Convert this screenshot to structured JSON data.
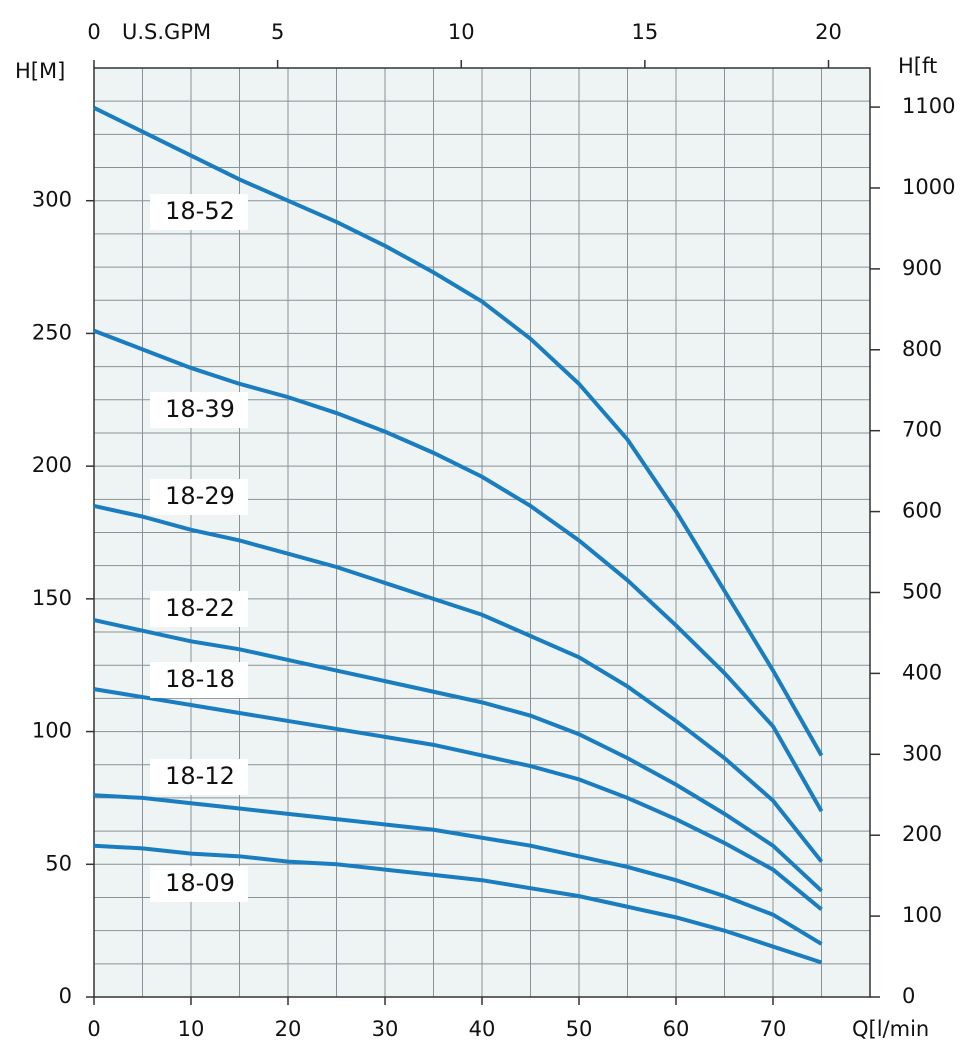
{
  "chart_data": {
    "type": "line",
    "y_label": "H[M]",
    "y2_label": "H[ft",
    "x_label": "Q[l/min",
    "x2_label": "U.S.GPM",
    "x": [
      0,
      5,
      10,
      15,
      20,
      25,
      30,
      35,
      40,
      45,
      50,
      55,
      60,
      65,
      70,
      75
    ],
    "xlim": [
      0,
      80
    ],
    "xticks": [
      0,
      10,
      20,
      30,
      40,
      50,
      60,
      70
    ],
    "x2lim": [
      0,
      21.13
    ],
    "x2ticks": [
      0,
      5,
      10,
      15,
      20
    ],
    "ylim": [
      0,
      350
    ],
    "yticks": [
      0,
      50,
      100,
      150,
      200,
      250,
      300
    ],
    "y2lim": [
      0,
      1148.3
    ],
    "y2ticks": [
      0,
      100,
      200,
      300,
      400,
      500,
      600,
      700,
      800,
      900,
      1000,
      1100
    ],
    "grid": true,
    "background": "#eef4f4",
    "series": [
      {
        "name": "18-52",
        "color": "#1a7dc0",
        "values": [
          335,
          326,
          317,
          308,
          300,
          292,
          283,
          273,
          262,
          248,
          231,
          210,
          183,
          153,
          123,
          91
        ]
      },
      {
        "name": "18-39",
        "color": "#1a7dc0",
        "values": [
          251,
          244,
          237,
          231,
          226,
          220,
          213,
          205,
          196,
          185,
          172,
          157,
          140,
          122,
          102,
          70
        ]
      },
      {
        "name": "18-29",
        "color": "#1a7dc0",
        "values": [
          185,
          181,
          176,
          172,
          167,
          162,
          156,
          150,
          144,
          136,
          128,
          117,
          104,
          90,
          74,
          51
        ]
      },
      {
        "name": "18-22",
        "color": "#1a7dc0",
        "values": [
          142,
          138,
          134,
          131,
          127,
          123,
          119,
          115,
          111,
          106,
          99,
          90,
          80,
          69,
          57,
          40
        ]
      },
      {
        "name": "18-18",
        "color": "#1a7dc0",
        "values": [
          116,
          113,
          110,
          107,
          104,
          101,
          98,
          95,
          91,
          87,
          82,
          75,
          67,
          58,
          48,
          33
        ]
      },
      {
        "name": "18-12",
        "color": "#1a7dc0",
        "values": [
          76,
          75,
          73,
          71,
          69,
          67,
          65,
          63,
          60,
          57,
          53,
          49,
          44,
          38,
          31,
          20
        ]
      },
      {
        "name": "18-09",
        "color": "#1a7dc0",
        "values": [
          57,
          56,
          54,
          53,
          51,
          50,
          48,
          46,
          44,
          41,
          38,
          34,
          30,
          25,
          19,
          13
        ]
      }
    ]
  }
}
